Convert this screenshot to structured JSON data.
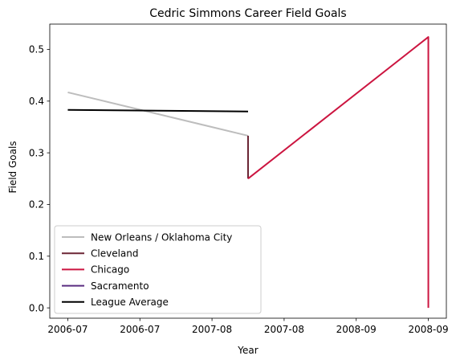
{
  "chart_data": {
    "type": "line",
    "title": "Cedric Simmons Career Field Goals",
    "xlabel": "Year",
    "ylabel": "Field Goals",
    "x_tick_labels": [
      "2006-07",
      "2006-07",
      "2007-08",
      "2007-08",
      "2008-09",
      "2008-09"
    ],
    "y_ticks": [
      "0.0",
      "0.1",
      "0.2",
      "0.3",
      "0.4",
      "0.5"
    ],
    "ylim": [
      -0.02,
      0.549
    ],
    "xlim": [
      -0.1,
      2.1
    ],
    "grid": false,
    "legend_position": "lower-left",
    "series": [
      {
        "name": "New Orleans / Oklahoma City",
        "color": "#bdbdbd",
        "points": [
          [
            0,
            0.417
          ],
          [
            1,
            0.333
          ]
        ]
      },
      {
        "name": "Cleveland",
        "color": "#6b2535",
        "points": [
          [
            1,
            0.333
          ],
          [
            1,
            0.25
          ]
        ]
      },
      {
        "name": "Chicago",
        "color": "#cc1540",
        "points": [
          [
            1,
            0.25
          ],
          [
            2,
            0.524
          ],
          [
            2,
            0.0
          ]
        ]
      },
      {
        "name": "Sacramento",
        "color": "#5a2d81",
        "points": []
      },
      {
        "name": "League Average",
        "color": "#000000",
        "points": [
          [
            0,
            0.383
          ],
          [
            1,
            0.38
          ]
        ]
      }
    ]
  }
}
